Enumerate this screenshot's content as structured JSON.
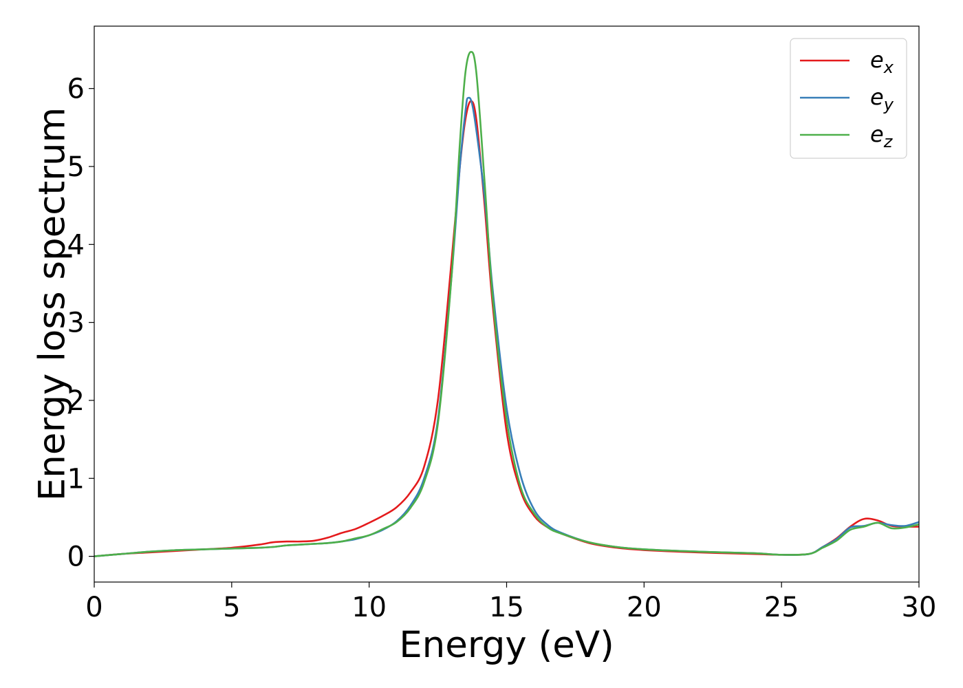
{
  "chart_data": {
    "type": "line",
    "xlabel": "Energy (eV)",
    "ylabel": "Energy loss spectrum",
    "xlim": [
      0,
      30
    ],
    "ylim": [
      -0.33,
      6.8
    ],
    "xticks": [
      0,
      5,
      10,
      15,
      20,
      25,
      30
    ],
    "yticks": [
      0,
      1,
      2,
      3,
      4,
      5,
      6
    ],
    "grid": false,
    "legend_position": "top-right",
    "series": [
      {
        "name": "e_x",
        "legend_base": "e",
        "legend_sub": "x",
        "color": "#e41a1c",
        "x": [
          0,
          1,
          2,
          3,
          4,
          5,
          6,
          6.5,
          7,
          7.5,
          8,
          8.5,
          9,
          9.5,
          10,
          10.5,
          11,
          11.5,
          12,
          12.5,
          13,
          13.3,
          13.5,
          13.7,
          13.9,
          14.2,
          14.5,
          15,
          15.5,
          16,
          16.5,
          17,
          18,
          19,
          20,
          22,
          24,
          25,
          26,
          26.5,
          27,
          27.5,
          28,
          28.5,
          29,
          29.5,
          30
        ],
        "y": [
          0,
          0.03,
          0.05,
          0.07,
          0.09,
          0.11,
          0.15,
          0.18,
          0.19,
          0.19,
          0.2,
          0.24,
          0.3,
          0.35,
          0.43,
          0.52,
          0.63,
          0.82,
          1.15,
          2.0,
          3.8,
          5.0,
          5.6,
          5.84,
          5.6,
          4.5,
          3.2,
          1.6,
          0.85,
          0.52,
          0.37,
          0.29,
          0.17,
          0.11,
          0.08,
          0.05,
          0.03,
          0.02,
          0.03,
          0.12,
          0.23,
          0.38,
          0.48,
          0.46,
          0.39,
          0.38,
          0.38
        ]
      },
      {
        "name": "e_y",
        "legend_base": "e",
        "legend_sub": "y",
        "color": "#377eb8",
        "x": [
          0,
          1,
          2,
          3,
          4,
          5,
          6,
          6.5,
          7,
          7.5,
          8,
          8.5,
          9,
          9.5,
          10,
          10.5,
          11,
          11.5,
          12,
          12.5,
          13,
          13.3,
          13.5,
          13.6,
          13.8,
          14.2,
          14.5,
          15,
          15.5,
          16,
          16.5,
          17,
          18,
          19,
          20,
          22,
          24,
          25,
          26,
          26.5,
          27,
          27.5,
          28,
          28.5,
          29,
          29.5,
          30
        ],
        "y": [
          0,
          0.03,
          0.06,
          0.08,
          0.09,
          0.1,
          0.11,
          0.12,
          0.14,
          0.15,
          0.16,
          0.17,
          0.19,
          0.22,
          0.27,
          0.34,
          0.45,
          0.65,
          1.0,
          1.75,
          3.6,
          5.0,
          5.7,
          5.88,
          5.7,
          4.6,
          3.4,
          1.9,
          1.05,
          0.6,
          0.4,
          0.3,
          0.18,
          0.12,
          0.09,
          0.06,
          0.04,
          0.02,
          0.03,
          0.12,
          0.22,
          0.37,
          0.39,
          0.43,
          0.4,
          0.39,
          0.44
        ]
      },
      {
        "name": "e_z",
        "legend_base": "e",
        "legend_sub": "z",
        "color": "#4daf4a",
        "x": [
          0,
          1,
          2,
          3,
          4,
          5,
          6,
          6.5,
          7,
          7.5,
          8,
          8.5,
          9,
          9.5,
          10,
          10.5,
          11,
          11.5,
          12,
          12.5,
          13,
          13.3,
          13.5,
          13.7,
          13.9,
          14.2,
          14.5,
          15,
          15.5,
          16,
          16.5,
          17,
          18,
          19,
          20,
          22,
          24,
          25,
          26,
          26.5,
          27,
          27.5,
          28,
          28.5,
          29,
          29.5,
          30
        ],
        "y": [
          0,
          0.03,
          0.06,
          0.08,
          0.09,
          0.1,
          0.11,
          0.12,
          0.14,
          0.15,
          0.16,
          0.17,
          0.19,
          0.23,
          0.27,
          0.35,
          0.44,
          0.62,
          0.95,
          1.7,
          3.6,
          5.3,
          6.2,
          6.47,
          6.2,
          4.8,
          3.3,
          1.75,
          0.9,
          0.55,
          0.37,
          0.29,
          0.18,
          0.12,
          0.09,
          0.06,
          0.04,
          0.02,
          0.03,
          0.11,
          0.2,
          0.34,
          0.38,
          0.43,
          0.36,
          0.37,
          0.41
        ]
      }
    ]
  }
}
